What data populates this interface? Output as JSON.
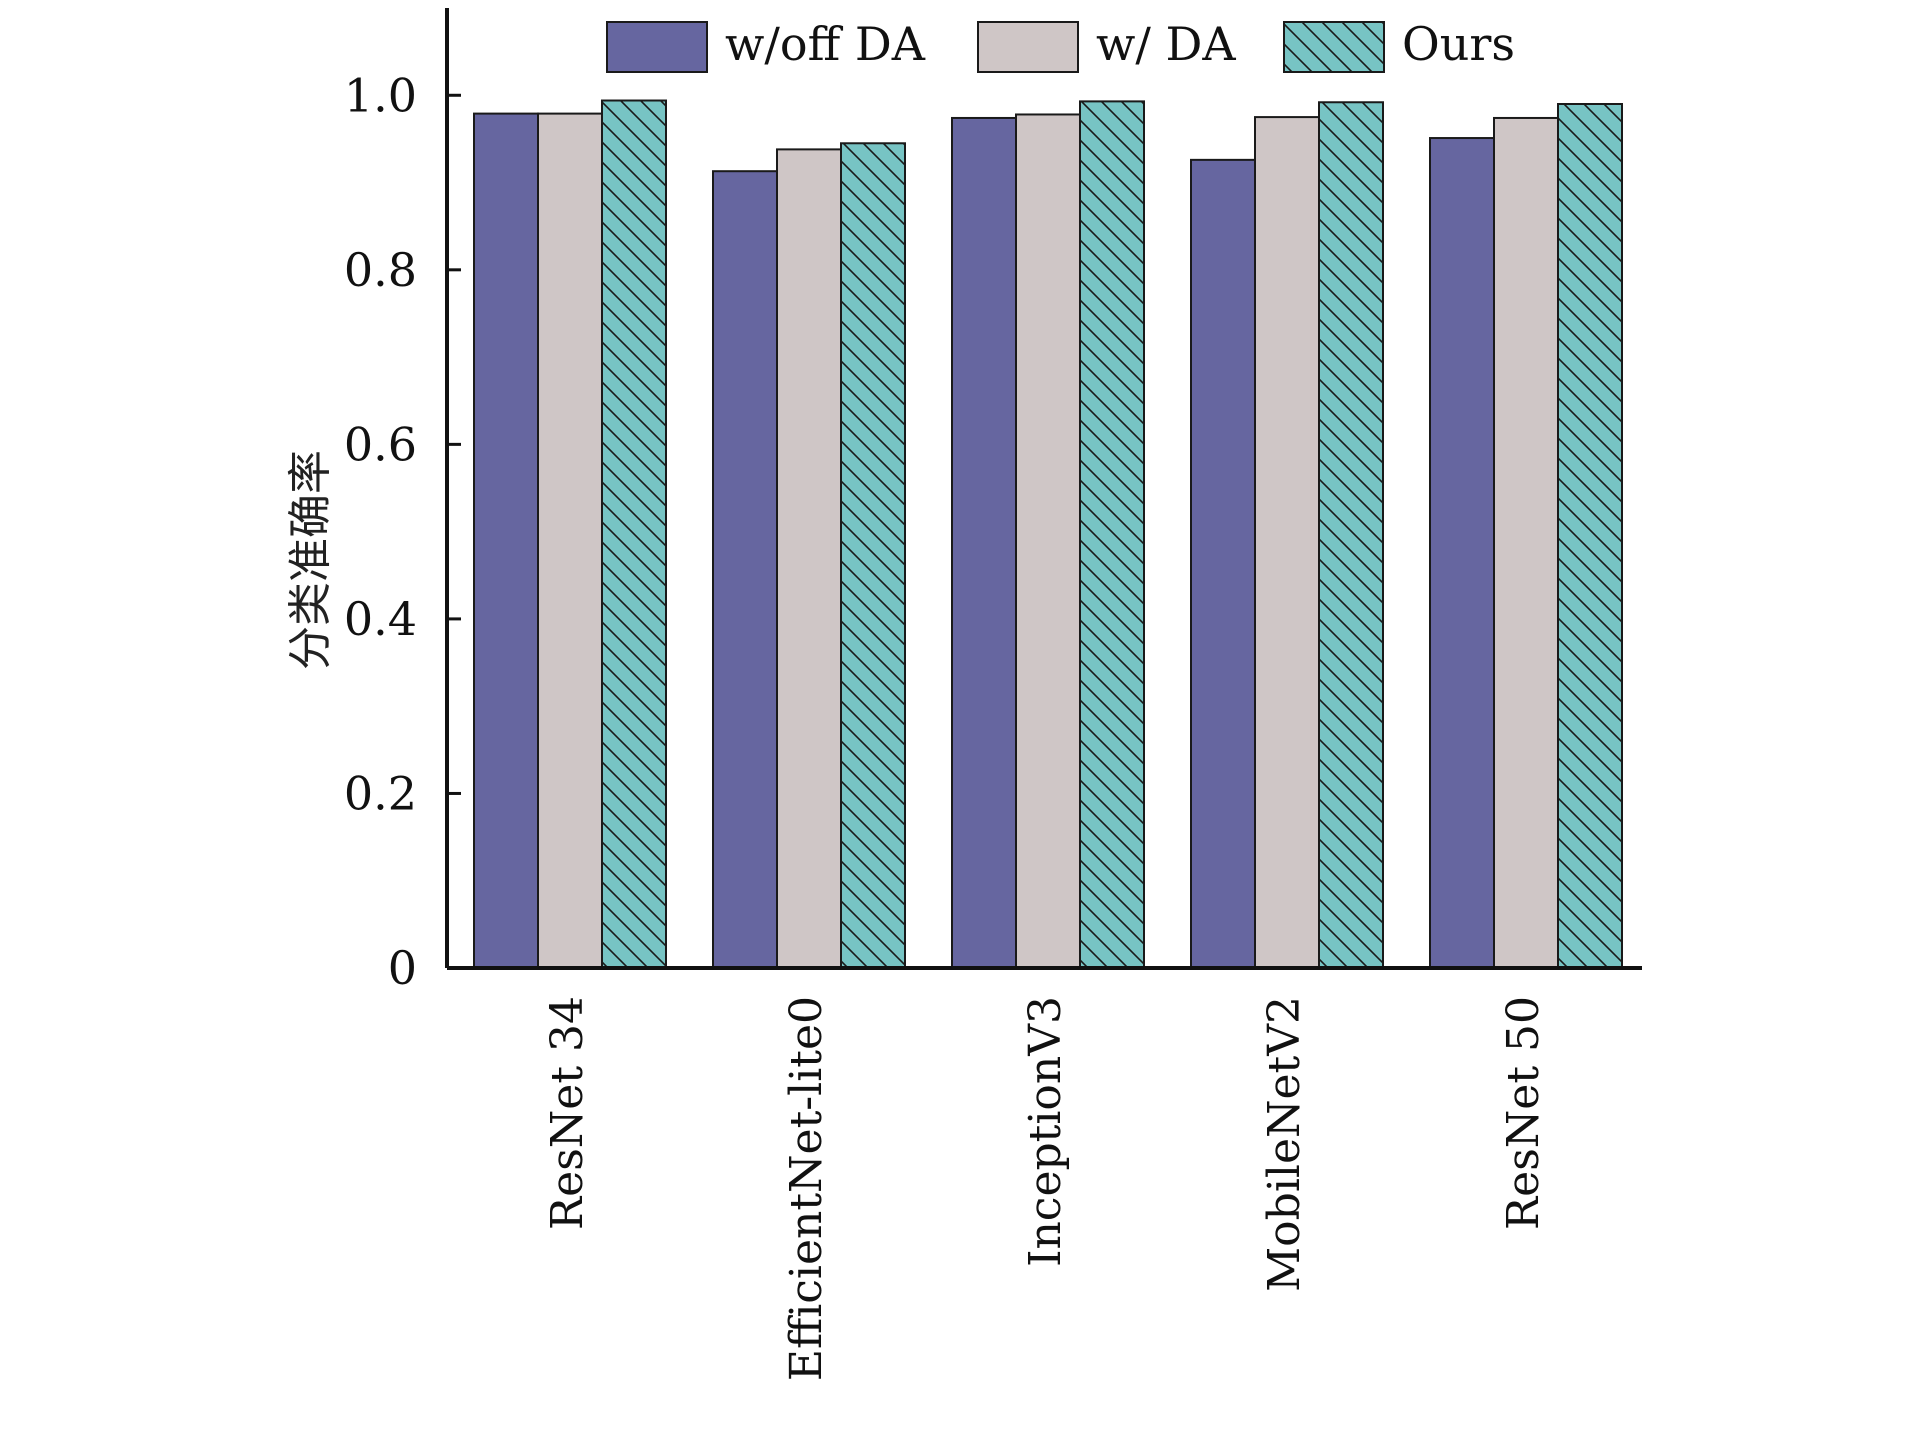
{
  "chart_data": {
    "type": "bar",
    "title": "",
    "xlabel": "",
    "ylabel": "分类准确率",
    "ylim": [
      0,
      1.1
    ],
    "yticks": [
      0,
      0.2,
      0.4,
      0.6,
      0.8,
      1.0
    ],
    "ytick_labels": [
      "0",
      "0.2",
      "0.4",
      "0.6",
      "0.8",
      "1.0"
    ],
    "categories": [
      "ResNet 34",
      "EfficientNet-lite0",
      "InceptionV3",
      "MobileNetV2",
      "ResNet 50"
    ],
    "series": [
      {
        "name": "w/off DA",
        "values": [
          0.979,
          0.913,
          0.974,
          0.926,
          0.951
        ],
        "color": "#6666a0",
        "pattern": "solid"
      },
      {
        "name": "w/ DA",
        "values": [
          0.979,
          0.938,
          0.978,
          0.975,
          0.974
        ],
        "color": "#cfc6c6",
        "pattern": "solid"
      },
      {
        "name": "Ours",
        "values": [
          0.994,
          0.945,
          0.993,
          0.992,
          0.99
        ],
        "color": "#77c4c4",
        "pattern": "hatch"
      }
    ],
    "legend_position": "top",
    "grid": false
  }
}
